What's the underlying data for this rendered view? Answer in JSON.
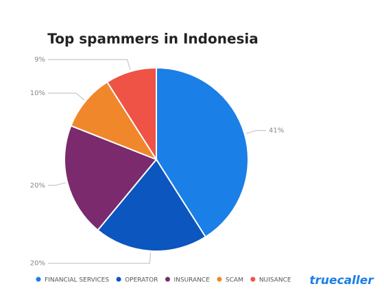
{
  "chart_data": {
    "type": "pie",
    "title": "Top spammers in Indonesia",
    "categories": [
      "FINANCIAL SERVICES",
      "OPERATOR",
      "INSURANCE",
      "SCAM",
      "NUISANCE"
    ],
    "values": [
      41,
      20,
      20,
      10,
      9
    ],
    "value_labels": [
      "41%",
      "20%",
      "20%",
      "10%",
      "9%"
    ],
    "colors": [
      "#1a7fe6",
      "#0b56bf",
      "#7b2a6d",
      "#f0872a",
      "#ee5346"
    ],
    "legend": "bottom"
  },
  "brand": "truecaller"
}
